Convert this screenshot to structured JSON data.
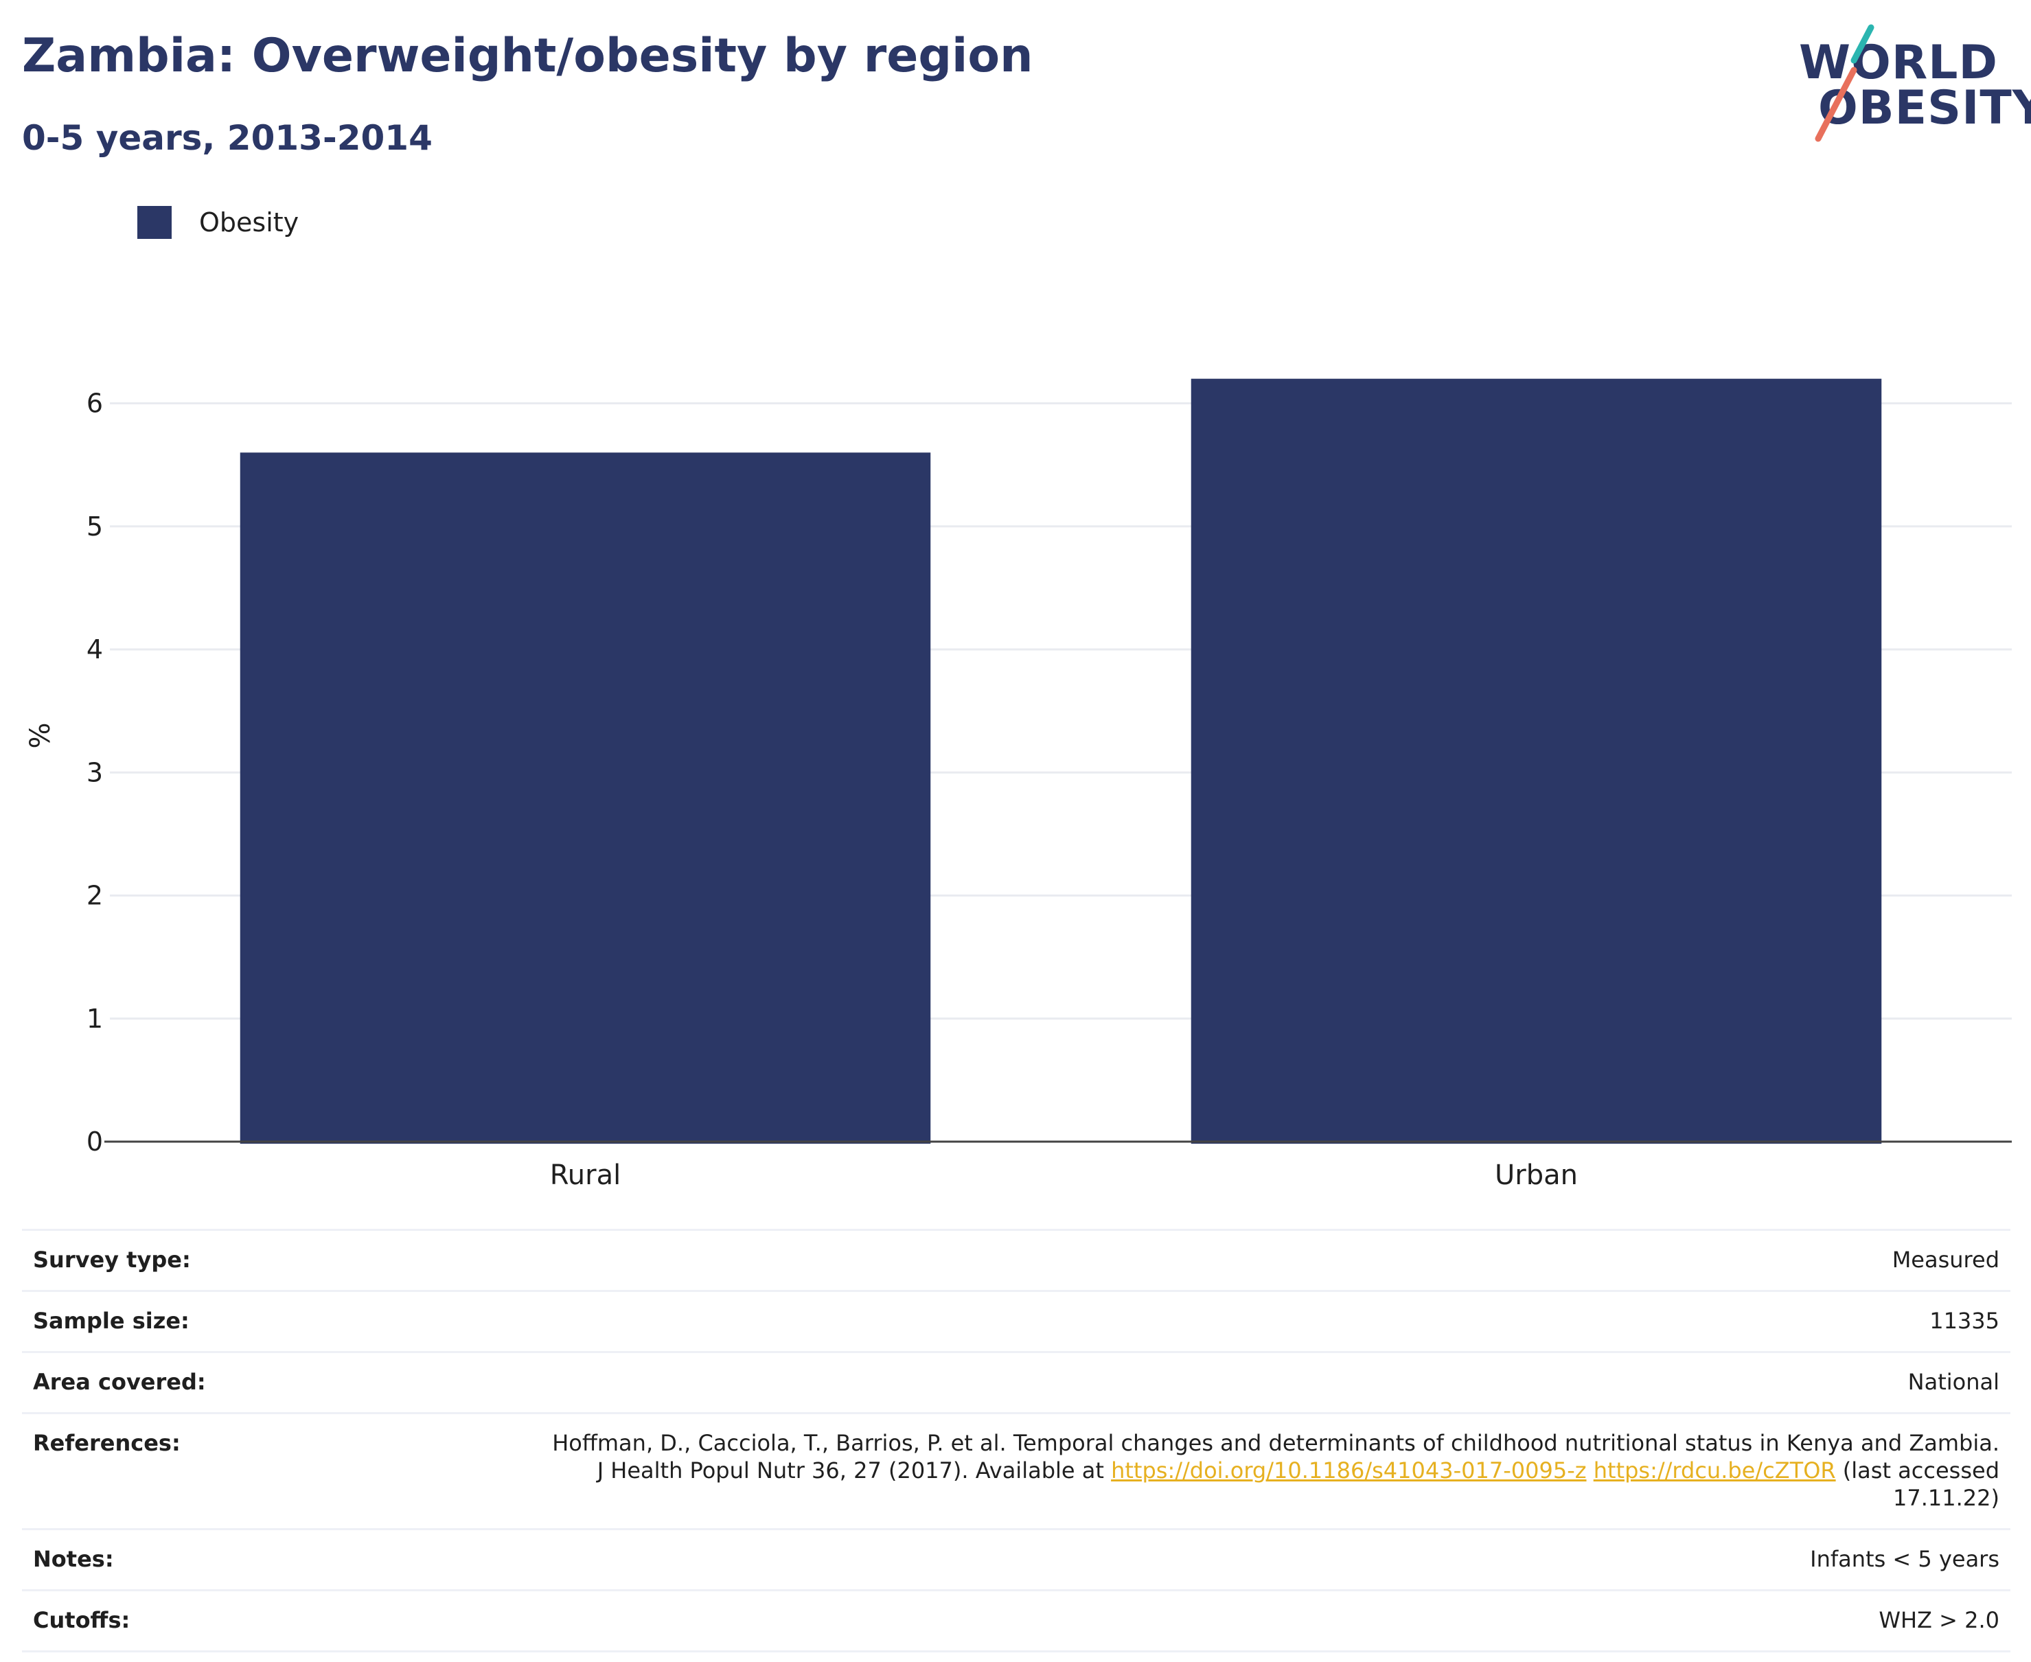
{
  "header": {
    "title": "Zambia: Overweight/obesity by region",
    "subtitle": "0-5 years, 2013-2014"
  },
  "logo": {
    "line1": "WORLD",
    "line2": "OBESITY",
    "colors": {
      "text": "#2b3766",
      "teal": "#2bb5b0",
      "coral": "#e8705c"
    }
  },
  "legend": {
    "items": [
      {
        "label": "Obesity",
        "color": "#2b3766"
      }
    ]
  },
  "chart_data": {
    "type": "bar",
    "categories": [
      "Rural",
      "Urban"
    ],
    "series": [
      {
        "name": "Obesity",
        "values": [
          5.6,
          6.2
        ],
        "color": "#2b3766"
      }
    ],
    "title": "Zambia: Overweight/obesity by region",
    "subtitle": "0-5 years, 2013-2014",
    "xlabel": "",
    "ylabel": "%",
    "ylim": [
      0,
      6.6
    ],
    "yticks": [
      0,
      1,
      2,
      3,
      4,
      5,
      6
    ],
    "grid": true,
    "legend_position": "top-left"
  },
  "info": {
    "survey_type_label": "Survey type:",
    "survey_type": "Measured",
    "sample_size_label": "Sample size:",
    "sample_size": "11335",
    "area_covered_label": "Area covered:",
    "area_covered": "National",
    "references_label": "References:",
    "references_text_1": "Hoffman, D., Cacciola, T., Barrios, P. et al. Temporal changes and determinants of childhood nutritional status in Kenya and Zambia. J Health Popul Nutr 36, 27 (2017). Available at ",
    "references_link_1": "https://doi.org/10.1186/s41043-017-0095-z",
    "references_link_2": "https://rdcu.be/cZTOR",
    "references_text_2": " (last accessed 17.11.22)",
    "notes_label": "Notes:",
    "notes": "Infants < 5 years",
    "cutoffs_label": "Cutoffs:",
    "cutoffs": "WHZ > 2.0"
  }
}
